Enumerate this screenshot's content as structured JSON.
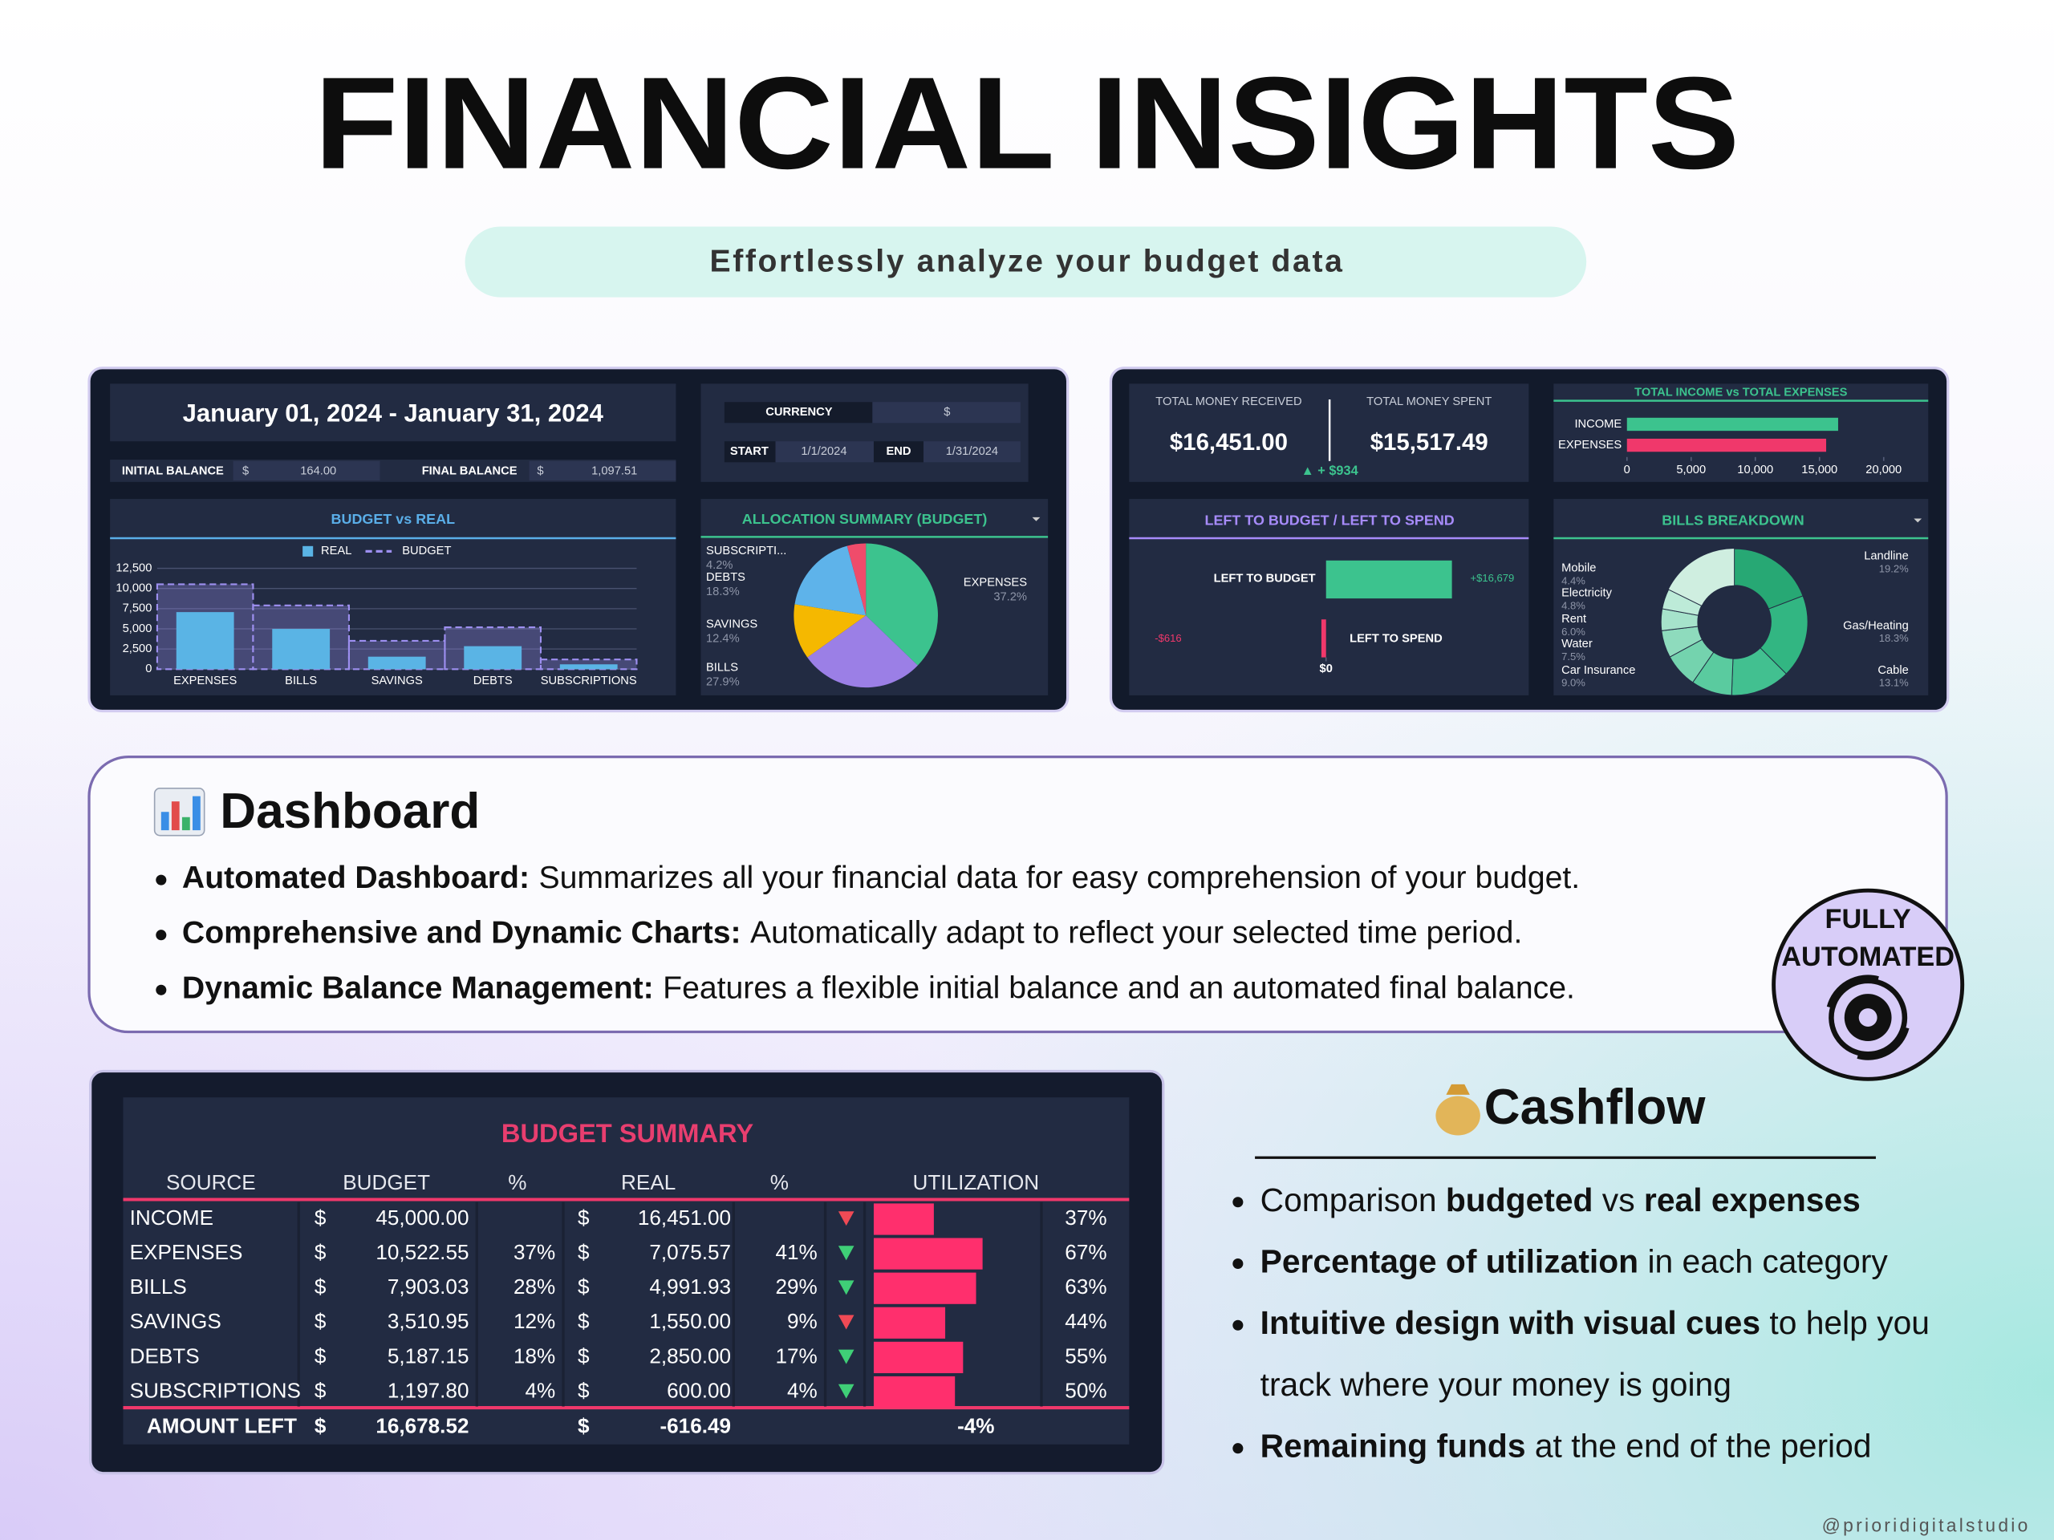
{
  "header": {
    "title": "FINANCIAL INSIGHTS",
    "subtitle": "Effortlessly analyze your budget data"
  },
  "overview": {
    "date_range": "January 01, 2024 - January 31, 2024",
    "initial_balance": {
      "label": "INITIAL BALANCE",
      "currency": "$",
      "value": "164.00"
    },
    "final_balance": {
      "label": "FINAL BALANCE",
      "currency": "$",
      "value": "1,097.51"
    },
    "currency": {
      "label": "CURRENCY",
      "value": "$"
    },
    "start": {
      "label": "START",
      "value": "1/1/2024"
    },
    "end": {
      "label": "END",
      "value": "1/31/2024"
    },
    "totals": {
      "received_label": "TOTAL MONEY RECEIVED",
      "received": "$16,451.00",
      "spent_label": "TOTAL MONEY SPENT",
      "spent": "$15,517.49",
      "difference": "▲ + $934"
    }
  },
  "chart_data": [
    {
      "type": "bar",
      "title": "BUDGET vs REAL",
      "categories": [
        "EXPENSES",
        "BILLS",
        "SAVINGS",
        "DEBTS",
        "SUBSCRIPTIONS"
      ],
      "series": [
        {
          "name": "REAL",
          "color": "#5ab4e5",
          "values": [
            7075.57,
            4991.93,
            1550.0,
            2850.0,
            600.0
          ]
        },
        {
          "name": "BUDGET",
          "color": "#9d8ff0",
          "values": [
            10522.55,
            7903.03,
            3510.95,
            5187.15,
            1197.8
          ]
        }
      ],
      "ylim": [
        0,
        12500
      ],
      "yticks": [
        0,
        {
          "value": 2500,
          "label": "2,500"
        },
        {
          "value": 5000,
          "label": "5,000"
        },
        {
          "value": 7500,
          "label": "7,500"
        },
        {
          "value": 10000,
          "label": "10,000"
        },
        {
          "value": 12500,
          "label": "12,500"
        }
      ],
      "grid": true
    },
    {
      "type": "pie",
      "title": "ALLOCATION SUMMARY (BUDGET)",
      "categories": [
        "EXPENSES",
        "BILLS",
        "SAVINGS",
        "DEBTS",
        "SUBSCRIPTI..."
      ],
      "values": [
        37.2,
        27.9,
        12.4,
        18.3,
        4.2
      ],
      "value_labels": [
        "37.2%",
        "27.9%",
        "12.4%",
        "18.3%",
        "4.2%"
      ],
      "colors": [
        "#3cc38e",
        "#9b7fe6",
        "#f5b800",
        "#5eb3ea",
        "#ef4c6b"
      ]
    },
    {
      "type": "hbar",
      "title": "TOTAL INCOME vs TOTAL EXPENSES",
      "categories": [
        "INCOME",
        "EXPENSES"
      ],
      "values": [
        16451.0,
        15517.49
      ],
      "colors": [
        "#3cc38e",
        "#f0386b"
      ],
      "xlim": [
        0,
        20000
      ],
      "xticks": [
        0,
        {
          "value": 5000,
          "label": "5,000"
        },
        {
          "value": 10000,
          "label": "10,000"
        },
        {
          "value": 15000,
          "label": "15,000"
        },
        {
          "value": 20000,
          "label": "20,000"
        }
      ]
    },
    {
      "type": "diverging",
      "title": "LEFT TO BUDGET / LEFT TO SPEND",
      "categories": [
        "LEFT TO BUDGET",
        "LEFT TO SPEND"
      ],
      "values": [
        16678.52,
        -616.49
      ],
      "value_labels": [
        "+$16,679",
        "-$616"
      ],
      "colors": [
        "#3cc38e",
        "#f0386b"
      ],
      "xlim": [
        -3000,
        18000
      ],
      "xticks": [
        {
          "value": 0,
          "label": "$0"
        }
      ]
    },
    {
      "type": "donut",
      "title": "BILLS BREAKDOWN",
      "categories": [
        "Landline",
        "Gas/Heating",
        "Cable",
        "Car Insurance",
        "Water",
        "Rent",
        "Electricity",
        "Mobile"
      ],
      "values": [
        19.2,
        18.3,
        13.1,
        9.0,
        7.5,
        6.0,
        4.8,
        4.4
      ],
      "value_labels": [
        "19.2%",
        "18.3%",
        "13.1%",
        "9.0%",
        "7.5%",
        "6.0%",
        "4.8%",
        "4.4%"
      ],
      "colors": [
        "#27a874",
        "#32b682",
        "#42c090",
        "#5acb9f",
        "#74d3ae",
        "#8edbbd",
        "#a6e3cb",
        "#bdebd8"
      ]
    }
  ],
  "dashboard": {
    "title": "Dashboard",
    "bullets": [
      {
        "lead": "Automated Dashboard:",
        "text": "Summarizes all your financial data for easy comprehension of your budget."
      },
      {
        "lead": "Comprehensive and Dynamic Charts:",
        "text": "Automatically adapt to reflect your selected time period."
      },
      {
        "lead": "Dynamic Balance Management:",
        "text": "Features a flexible initial balance and an automated final balance."
      }
    ],
    "badge": [
      "FULLY",
      "AUTOMATED"
    ]
  },
  "budget_summary": {
    "title": "BUDGET SUMMARY",
    "headers": [
      "SOURCE",
      "BUDGET",
      "%",
      "REAL",
      "%",
      "UTILIZATION"
    ],
    "currency": "$",
    "rows": [
      {
        "source": "INCOME",
        "budget": "45,000.00",
        "real": "16,451.00",
        "flag": "red",
        "utilization": 37,
        "utilization_label": "37%"
      },
      {
        "source": "EXPENSES",
        "budget": "10,522.55",
        "budget_pct": "37%",
        "real": "7,075.57",
        "real_pct": "41%",
        "flag": "green",
        "utilization": 67,
        "utilization_label": "67%"
      },
      {
        "source": "BILLS",
        "budget": "7,903.03",
        "budget_pct": "28%",
        "real": "4,991.93",
        "real_pct": "29%",
        "flag": "green",
        "utilization": 63,
        "utilization_label": "63%"
      },
      {
        "source": "SAVINGS",
        "budget": "3,510.95",
        "budget_pct": "12%",
        "real": "1,550.00",
        "real_pct": "9%",
        "flag": "red",
        "utilization": 44,
        "utilization_label": "44%"
      },
      {
        "source": "DEBTS",
        "budget": "5,187.15",
        "budget_pct": "18%",
        "real": "2,850.00",
        "real_pct": "17%",
        "flag": "green",
        "utilization": 55,
        "utilization_label": "55%"
      },
      {
        "source": "SUBSCRIPTIONS",
        "budget": "1,197.80",
        "budget_pct": "4%",
        "real": "600.00",
        "real_pct": "4%",
        "flag": "green",
        "utilization": 50,
        "utilization_label": "50%"
      }
    ],
    "total": {
      "source": "AMOUNT LEFT",
      "budget": "16,678.52",
      "real": "-616.49",
      "utilization_label": "-4%"
    }
  },
  "cashflow": {
    "title": "Cashflow",
    "bullets": [
      {
        "lines": [
          [
            {
              "text": "Comparison ",
              "bold": false
            },
            {
              "text": "budgeted",
              "bold": true
            },
            {
              "text": " vs ",
              "bold": false
            },
            {
              "text": "real expenses",
              "bold": true
            }
          ]
        ]
      },
      {
        "lines": [
          [
            {
              "text": "Percentage of utilization",
              "bold": true
            },
            {
              "text": " in each category",
              "bold": false
            }
          ]
        ]
      },
      {
        "lines": [
          [
            {
              "text": "Intuitive design with visual cues",
              "bold": true
            },
            {
              "text": " to help you",
              "bold": false
            }
          ],
          [
            {
              "text": "track where your money is going",
              "bold": false
            }
          ]
        ]
      },
      {
        "lines": [
          [
            {
              "text": "Remaining funds",
              "bold": true
            },
            {
              "text": " at the end of the period",
              "bold": false
            }
          ]
        ]
      }
    ]
  },
  "footer": "@prioridigitalstudio"
}
